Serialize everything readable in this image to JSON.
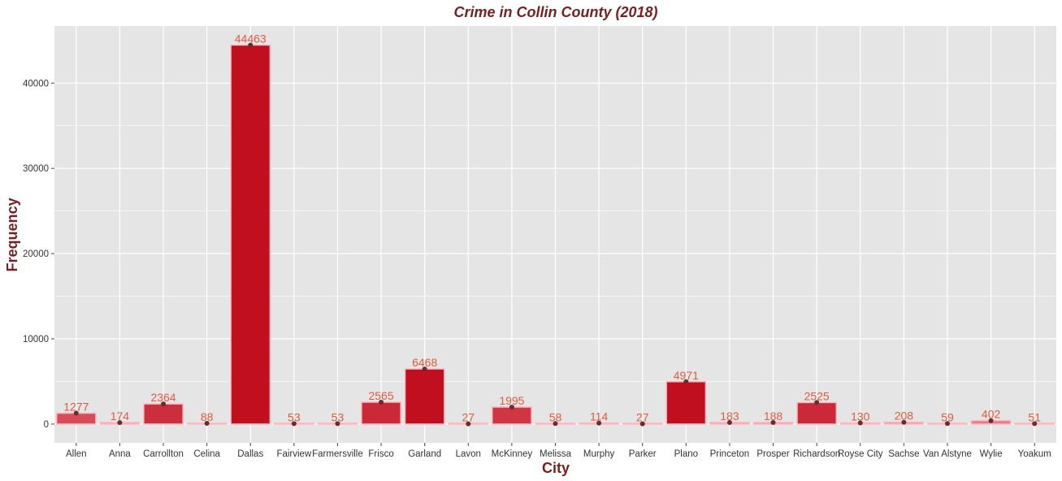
{
  "chart_data": {
    "type": "bar",
    "title": "Crime in Collin County (2018)",
    "xlabel": "City",
    "ylabel": "Frequency",
    "categories": [
      "Allen",
      "Anna",
      "Carrollton",
      "Celina",
      "Dallas",
      "Fairview",
      "Farmersville",
      "Frisco",
      "Garland",
      "Lavon",
      "McKinney",
      "Melissa",
      "Murphy",
      "Parker",
      "Plano",
      "Princeton",
      "Prosper",
      "Richardson",
      "Royse City",
      "Sachse",
      "Van Alstyne",
      "Wylie",
      "Yoakum"
    ],
    "values": [
      1277,
      174,
      2364,
      88,
      44463,
      53,
      53,
      2565,
      6468,
      27,
      1995,
      58,
      114,
      27,
      4971,
      183,
      188,
      2525,
      130,
      208,
      59,
      402,
      51
    ],
    "data_labels": [
      "1277",
      "174",
      "2364",
      "88",
      "44463",
      "53",
      "53",
      "2565",
      "6468",
      "27",
      "1995",
      "58",
      "114",
      "27",
      "4971",
      "183",
      "188",
      "2525",
      "130",
      "208",
      "59",
      "402",
      "51"
    ],
    "yticks": [
      0,
      10000,
      20000,
      30000,
      40000
    ],
    "ytick_labels": [
      "0",
      "10000",
      "20000",
      "30000",
      "40000"
    ],
    "ylim": [
      -2200,
      46700
    ],
    "grid": true,
    "legend": "none",
    "colors": {
      "panel": "#e5e5e5",
      "grid": "#ffffff",
      "bar_fill_low": "#ffb6c1",
      "bar_fill_high": "#c0101f",
      "bar_outline": "#ffb6c1",
      "point": "#6b2c2c",
      "data_label": "#e05a3c",
      "title": "#7a1f1f"
    }
  }
}
